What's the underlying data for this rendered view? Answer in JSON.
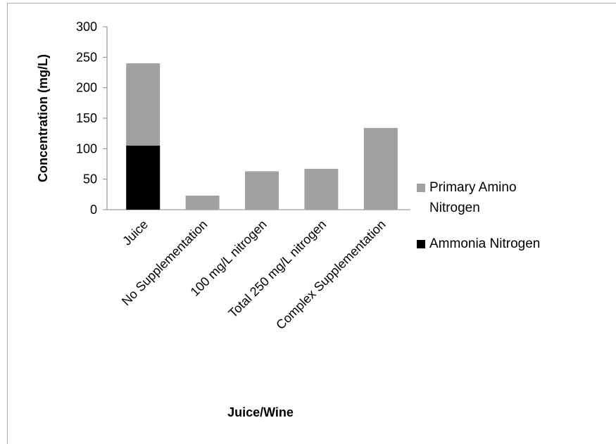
{
  "chart_data": {
    "type": "stacked_bar",
    "x_label": "Juice/Wine",
    "y_label": "Concentration (mg/L)",
    "categories": [
      "Juice",
      "No Supplementation",
      "100 mg/L nitrogen",
      "Total 250 mg/L nitrogen",
      "Complex Supplementation"
    ],
    "series": [
      {
        "name": "Ammonia Nitrogen",
        "color": "#000000",
        "values": [
          105,
          0,
          0,
          0,
          0
        ]
      },
      {
        "name": "Primary Amino Nitrogen",
        "color": "#a0a0a0",
        "values": [
          135,
          23,
          63,
          67,
          134
        ]
      }
    ],
    "ylim": [
      0,
      300
    ],
    "yticks": [
      0,
      50,
      100,
      150,
      200,
      250,
      300
    ],
    "grid": false,
    "legend": "right"
  }
}
